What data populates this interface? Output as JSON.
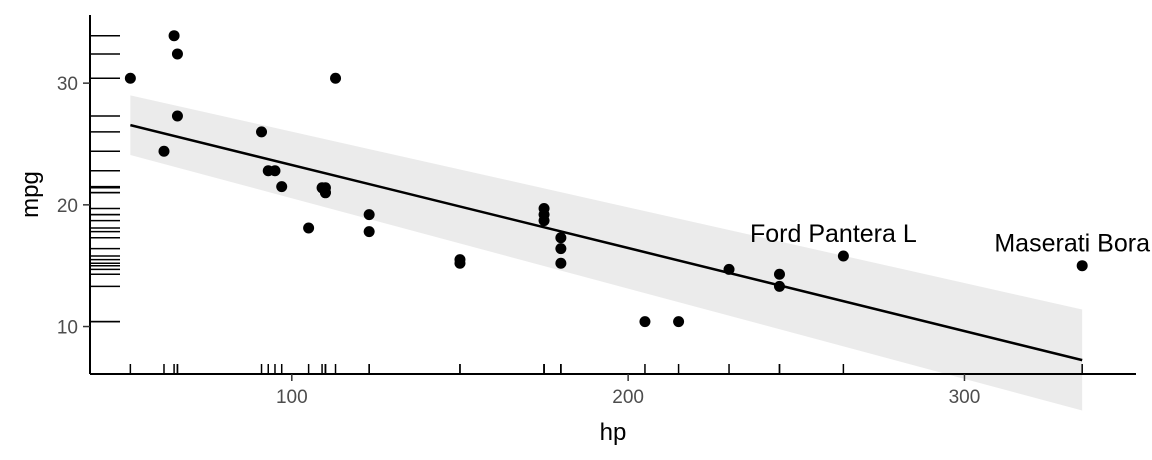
{
  "chart_data": {
    "type": "scatter",
    "title": "",
    "xlabel": "hp",
    "ylabel": "mpg",
    "xlim": [
      40,
      351
    ],
    "ylim": [
      6.1,
      35.6
    ],
    "x_ticks": [
      100,
      200,
      300
    ],
    "y_ticks": [
      10,
      20,
      30
    ],
    "grid": false,
    "legend": "none",
    "x": [
      110,
      110,
      93,
      110,
      175,
      105,
      245,
      62,
      95,
      123,
      123,
      180,
      180,
      180,
      205,
      215,
      230,
      66,
      52,
      65,
      97,
      150,
      150,
      245,
      175,
      66,
      91,
      113,
      264,
      175,
      335,
      109
    ],
    "y": [
      21.0,
      21.0,
      22.8,
      21.4,
      18.7,
      18.1,
      14.3,
      24.4,
      22.8,
      19.2,
      17.8,
      16.4,
      17.3,
      15.2,
      10.4,
      10.4,
      14.7,
      32.4,
      30.4,
      33.9,
      21.5,
      15.5,
      15.2,
      13.3,
      19.2,
      27.3,
      26.0,
      30.4,
      15.8,
      19.7,
      15.0,
      21.4
    ],
    "fit": {
      "x": [
        52,
        335
      ],
      "y": [
        26.55,
        7.24
      ],
      "ci_lower": [
        24.1,
        3.1
      ],
      "ci_upper": [
        29.0,
        11.4
      ]
    },
    "annotations": [
      {
        "text": "Ford Pantera L",
        "x": 264,
        "y": 15.8
      },
      {
        "text": "Maserati Bora",
        "x": 335,
        "y": 15.0
      }
    ],
    "colors": {
      "points": "#000000",
      "line": "#000000",
      "band": "#ebebeb",
      "axis": "#000000",
      "tick_text": "#4d4d4d"
    }
  }
}
